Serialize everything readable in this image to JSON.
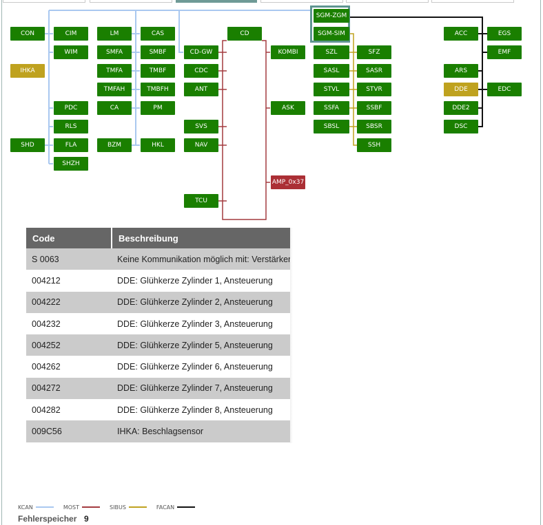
{
  "topology": {
    "ecus": [
      {
        "id": "CON",
        "label": "CON",
        "status": "ok"
      },
      {
        "id": "CIM",
        "label": "CIM",
        "status": "ok"
      },
      {
        "id": "LM",
        "label": "LM",
        "status": "ok"
      },
      {
        "id": "CAS",
        "label": "CAS",
        "status": "ok"
      },
      {
        "id": "CD",
        "label": "CD",
        "status": "ok"
      },
      {
        "id": "SGM-ZGM",
        "label": "SGM-ZGM",
        "status": "ok"
      },
      {
        "id": "SGM-SIM",
        "label": "SGM-SIM",
        "status": "ok"
      },
      {
        "id": "ACC",
        "label": "ACC",
        "status": "ok"
      },
      {
        "id": "EGS",
        "label": "EGS",
        "status": "ok"
      },
      {
        "id": "WIM",
        "label": "WIM",
        "status": "ok"
      },
      {
        "id": "SMFA",
        "label": "SMFA",
        "status": "ok"
      },
      {
        "id": "SMBF",
        "label": "SMBF",
        "status": "ok"
      },
      {
        "id": "CD-GW",
        "label": "CD-GW",
        "status": "ok"
      },
      {
        "id": "KOMBI",
        "label": "KOMBI",
        "status": "ok"
      },
      {
        "id": "SZL",
        "label": "SZL",
        "status": "ok"
      },
      {
        "id": "SFZ",
        "label": "SFZ",
        "status": "ok"
      },
      {
        "id": "EMF",
        "label": "EMF",
        "status": "ok"
      },
      {
        "id": "IHKA",
        "label": "IHKA",
        "status": "warn"
      },
      {
        "id": "TMFA",
        "label": "TMFA",
        "status": "ok"
      },
      {
        "id": "TMBF",
        "label": "TMBF",
        "status": "ok"
      },
      {
        "id": "CDC",
        "label": "CDC",
        "status": "ok"
      },
      {
        "id": "SASL",
        "label": "SASL",
        "status": "ok"
      },
      {
        "id": "SASR",
        "label": "SASR",
        "status": "ok"
      },
      {
        "id": "ARS",
        "label": "ARS",
        "status": "ok"
      },
      {
        "id": "TMFAH",
        "label": "TMFAH",
        "status": "ok"
      },
      {
        "id": "TMBFH",
        "label": "TMBFH",
        "status": "ok"
      },
      {
        "id": "ANT",
        "label": "ANT",
        "status": "ok"
      },
      {
        "id": "STVL",
        "label": "STVL",
        "status": "ok"
      },
      {
        "id": "STVR",
        "label": "STVR",
        "status": "ok"
      },
      {
        "id": "DDE",
        "label": "DDE",
        "status": "warn"
      },
      {
        "id": "EDC",
        "label": "EDC",
        "status": "ok"
      },
      {
        "id": "PDC",
        "label": "PDC",
        "status": "ok"
      },
      {
        "id": "CA",
        "label": "CA",
        "status": "ok"
      },
      {
        "id": "PM",
        "label": "PM",
        "status": "ok"
      },
      {
        "id": "ASK",
        "label": "ASK",
        "status": "ok"
      },
      {
        "id": "SSFA",
        "label": "SSFA",
        "status": "ok"
      },
      {
        "id": "SSBF",
        "label": "SSBF",
        "status": "ok"
      },
      {
        "id": "DDE2",
        "label": "DDE2",
        "status": "ok"
      },
      {
        "id": "RLS",
        "label": "RLS",
        "status": "ok"
      },
      {
        "id": "SVS",
        "label": "SVS",
        "status": "ok"
      },
      {
        "id": "SBSL",
        "label": "SBSL",
        "status": "ok"
      },
      {
        "id": "SBSR",
        "label": "SBSR",
        "status": "ok"
      },
      {
        "id": "DSC",
        "label": "DSC",
        "status": "ok"
      },
      {
        "id": "SHD",
        "label": "SHD",
        "status": "ok"
      },
      {
        "id": "FLA",
        "label": "FLA",
        "status": "ok"
      },
      {
        "id": "BZM",
        "label": "BZM",
        "status": "ok"
      },
      {
        "id": "HKL",
        "label": "HKL",
        "status": "ok"
      },
      {
        "id": "NAV",
        "label": "NAV",
        "status": "ok"
      },
      {
        "id": "SSH",
        "label": "SSH",
        "status": "ok"
      },
      {
        "id": "SHZH",
        "label": "SHZH",
        "status": "ok"
      },
      {
        "id": "AMP_0x37",
        "label": "AMP_0x37",
        "status": "err"
      },
      {
        "id": "TCU",
        "label": "TCU",
        "status": "ok"
      }
    ]
  },
  "colors": {
    "ok": "#1a7f00",
    "warn": "#bfa21f",
    "err": "#ab2f35",
    "kcan": "#a9c8f0",
    "most": "#a33a3f",
    "sibus": "#bfa21f",
    "facan": "#111111",
    "gateway_border": "#5e9590",
    "table_header": "#666666",
    "row_alt": "#cbcbcb"
  },
  "fault_table": {
    "headers": {
      "code": "Code",
      "description": "Beschreibung"
    },
    "rows": [
      {
        "code": "S 0063",
        "description": "Keine Kommunikation möglich mit: Verstärker"
      },
      {
        "code": "004212",
        "description": "DDE: Glühkerze Zylinder 1, Ansteuerung"
      },
      {
        "code": "004222",
        "description": "DDE: Glühkerze Zylinder 2, Ansteuerung"
      },
      {
        "code": "004232",
        "description": "DDE: Glühkerze Zylinder 3, Ansteuerung"
      },
      {
        "code": "004252",
        "description": "DDE: Glühkerze Zylinder 5, Ansteuerung"
      },
      {
        "code": "004262",
        "description": "DDE: Glühkerze Zylinder 6, Ansteuerung"
      },
      {
        "code": "004272",
        "description": "DDE: Glühkerze Zylinder 7, Ansteuerung"
      },
      {
        "code": "004282",
        "description": "DDE: Glühkerze Zylinder 8, Ansteuerung"
      },
      {
        "code": "009C56",
        "description": "IHKA: Beschlagsensor"
      }
    ]
  },
  "legend": [
    {
      "label": "KCAN",
      "color": "#a9c8f0"
    },
    {
      "label": "MOST",
      "color": "#a33a3f"
    },
    {
      "label": "SIBUS",
      "color": "#bfa21f"
    },
    {
      "label": "FACAN",
      "color": "#111111"
    }
  ],
  "fault_memory": {
    "label": "Fehlerspeicher",
    "count": "9"
  }
}
